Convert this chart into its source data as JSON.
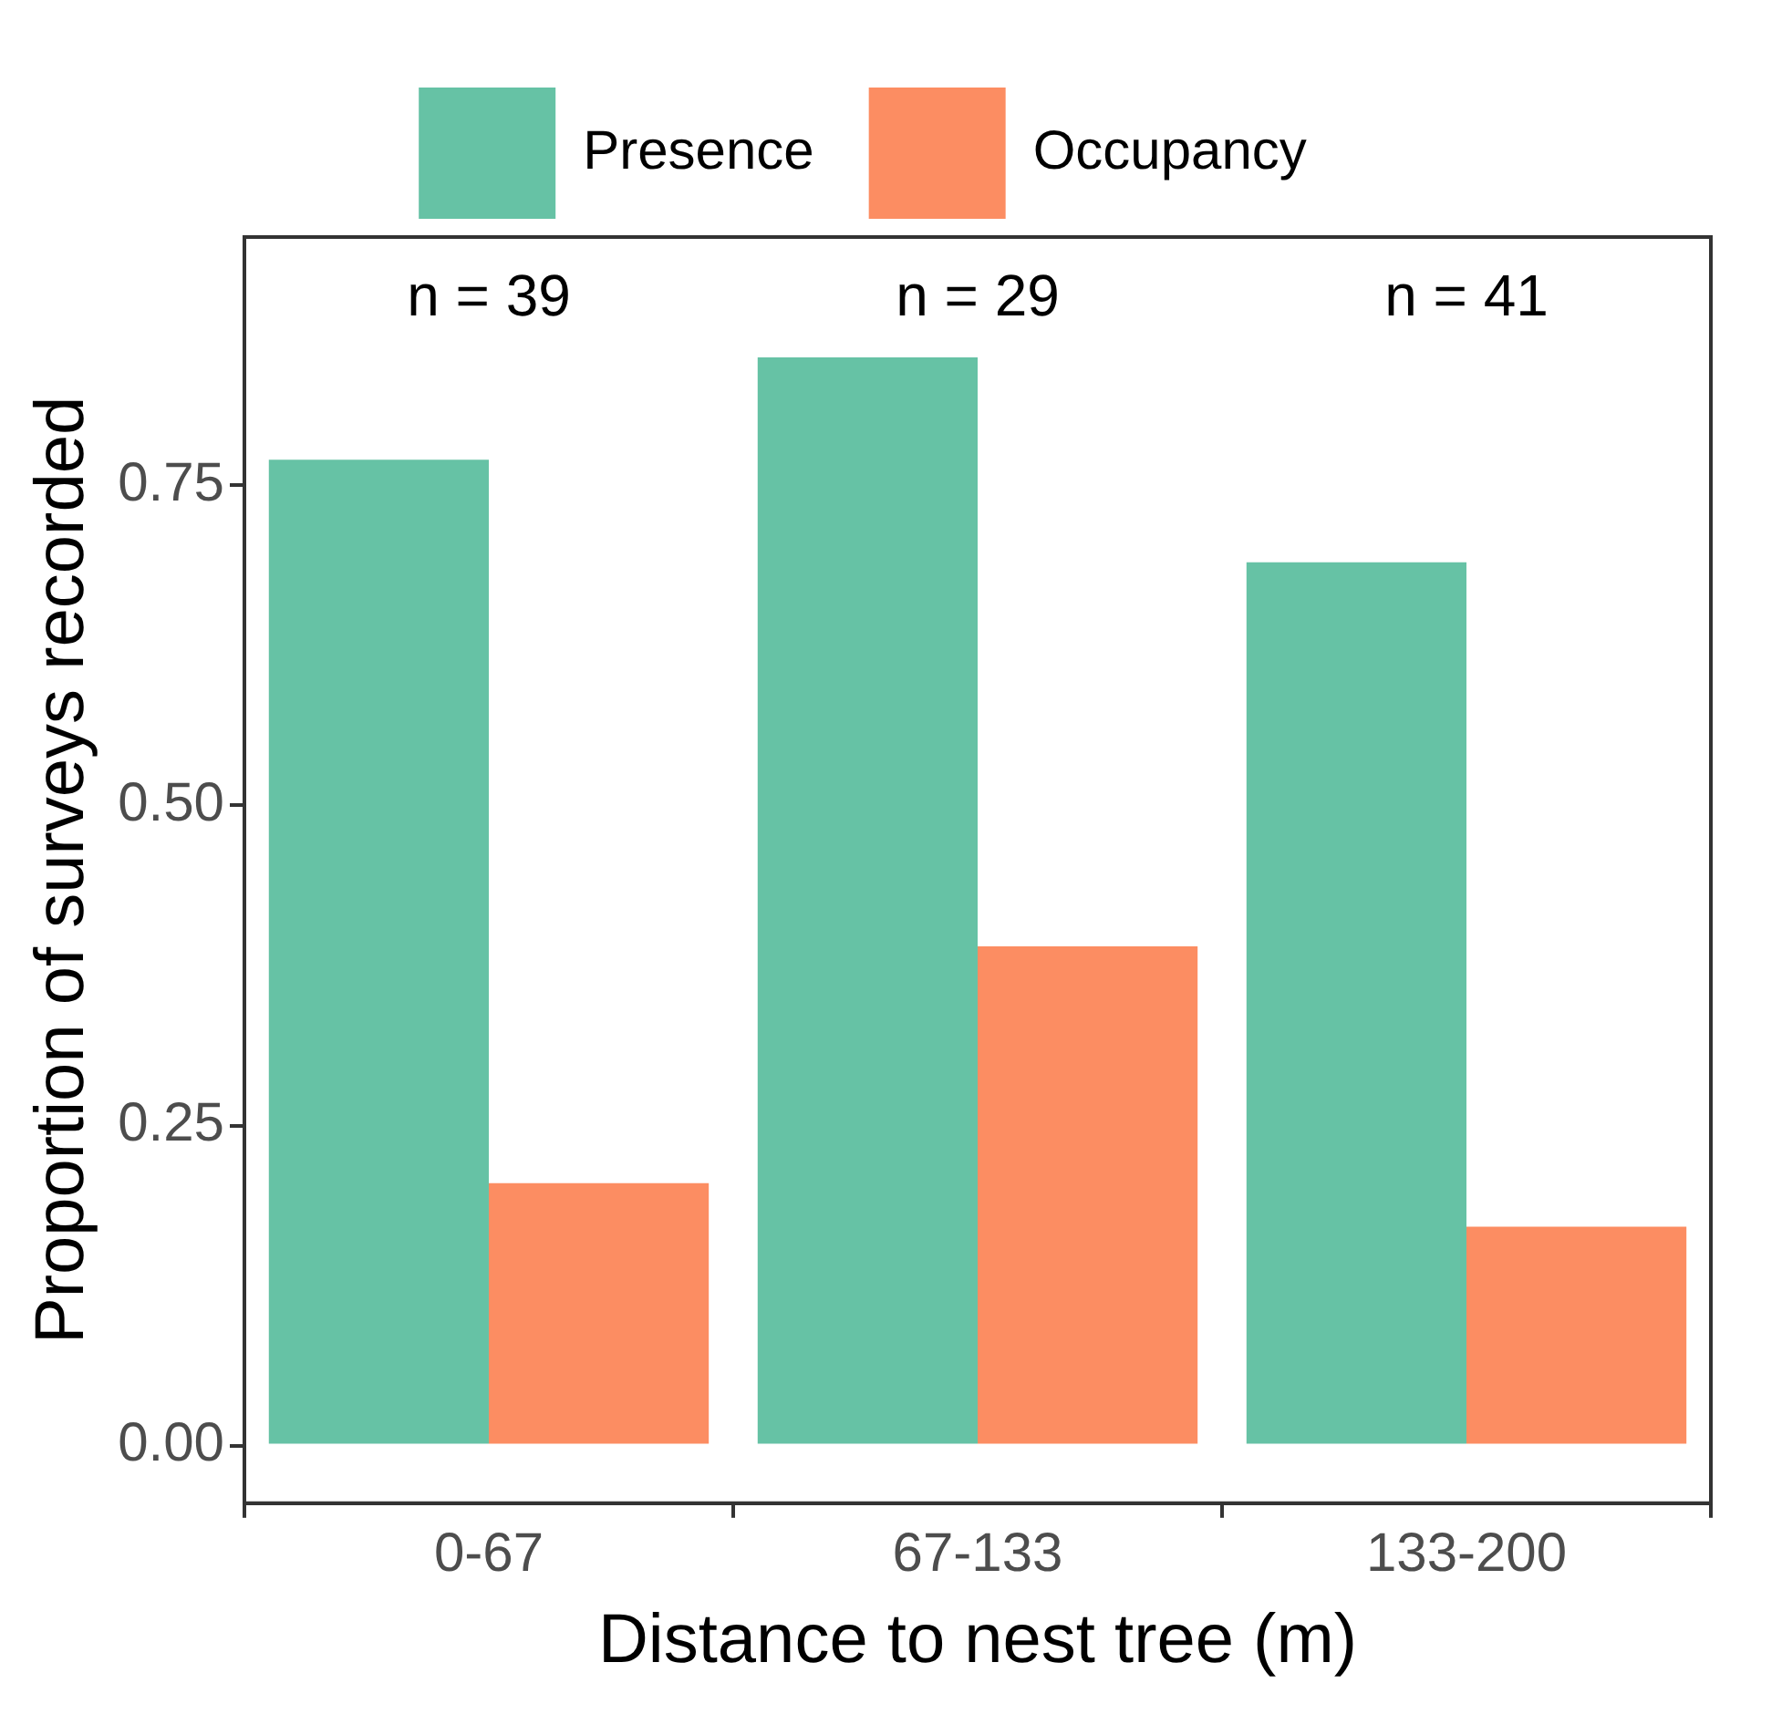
{
  "chart_data": {
    "type": "bar",
    "xlabel": "Distance to nest tree (m)",
    "ylabel": "Proportion of surveys recorded",
    "categories": [
      "0-67",
      "67-133",
      "133-200"
    ],
    "series": [
      {
        "name": "Presence",
        "color": "#66c2a5",
        "values": [
          0.77,
          0.85,
          0.69
        ]
      },
      {
        "name": "Occupancy",
        "color": "#fc8d62",
        "values": [
          0.205,
          0.39,
          0.171
        ]
      }
    ],
    "ylim": [
      -0.045,
      0.944
    ],
    "yticks": [
      {
        "value": 0,
        "label": "0.00"
      },
      {
        "value": 0.25,
        "label": "0.25"
      },
      {
        "value": 0.5,
        "label": "0.50"
      },
      {
        "value": 0.75,
        "label": "0.75"
      }
    ],
    "annotations": [
      "n = 39",
      "n = 29",
      "n = 41"
    ],
    "grid": false,
    "legend": "top"
  }
}
